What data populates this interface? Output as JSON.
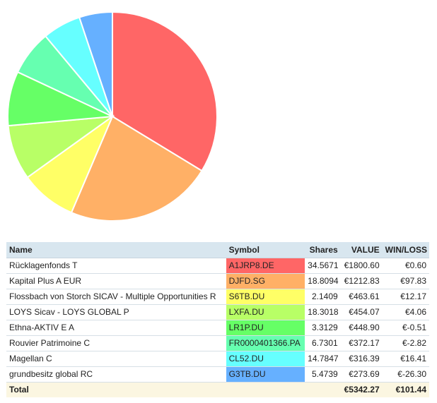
{
  "chart_data": {
    "type": "pie",
    "categories": [
      "Rücklagenfonds T",
      "Kapital Plus A EUR",
      "Flossbach von Storch SICAV - Multiple Opportunities R",
      "LOYS Sicav - LOYS GLOBAL P",
      "Ethna-AKTIV E A",
      "Rouvier Patrimoine C",
      "Magellan C",
      "grundbesitz global RC"
    ],
    "values": [
      1800.6,
      1212.83,
      463.61,
      454.07,
      448.9,
      372.17,
      316.39,
      273.69
    ],
    "colors": [
      "#ff6666",
      "#ffb066",
      "#ffff66",
      "#b8ff66",
      "#66ff66",
      "#66ffb0",
      "#66ffff",
      "#66b0ff"
    ]
  },
  "table": {
    "headers": {
      "name": "Name",
      "symbol": "Symbol",
      "shares": "Shares",
      "value": "VALUE",
      "winloss": "WIN/LOSS"
    },
    "rows": [
      {
        "name": "Rücklagenfonds T",
        "symbol": "A1JRP8.DE",
        "shares": "34.5671",
        "value": "€1800.60",
        "winloss": "€0.60",
        "color": "#ff6666"
      },
      {
        "name": "Kapital Plus A EUR",
        "symbol": "DJFD.SG",
        "shares": "18.8094",
        "value": "€1212.83",
        "winloss": "€97.83",
        "color": "#ffb066"
      },
      {
        "name": "Flossbach von Storch SICAV - Multiple Opportunities R",
        "symbol": "S6TB.DU",
        "shares": "2.1409",
        "value": "€463.61",
        "winloss": "€12.17",
        "color": "#ffff66"
      },
      {
        "name": "LOYS Sicav - LOYS GLOBAL P",
        "symbol": "LXFA.DU",
        "shares": "18.3018",
        "value": "€454.07",
        "winloss": "€4.06",
        "color": "#b8ff66"
      },
      {
        "name": "Ethna-AKTIV E A",
        "symbol": "LR1P.DU",
        "shares": "3.3129",
        "value": "€448.90",
        "winloss": "€-0.51",
        "color": "#66ff66"
      },
      {
        "name": "Rouvier Patrimoine C",
        "symbol": "FR0000401366.PA",
        "shares": "6.7301",
        "value": "€372.17",
        "winloss": "€-2.82",
        "color": "#66ffb0"
      },
      {
        "name": "Magellan C",
        "symbol": "CL52.DU",
        "shares": "14.7847",
        "value": "€316.39",
        "winloss": "€16.41",
        "color": "#66ffff"
      },
      {
        "name": "grundbesitz global RC",
        "symbol": "G3TB.DU",
        "shares": "5.4739",
        "value": "€273.69",
        "winloss": "€-26.30",
        "color": "#66b0ff"
      }
    ],
    "total": {
      "label": "Total",
      "value": "€5342.27",
      "winloss": "€101.44"
    }
  }
}
